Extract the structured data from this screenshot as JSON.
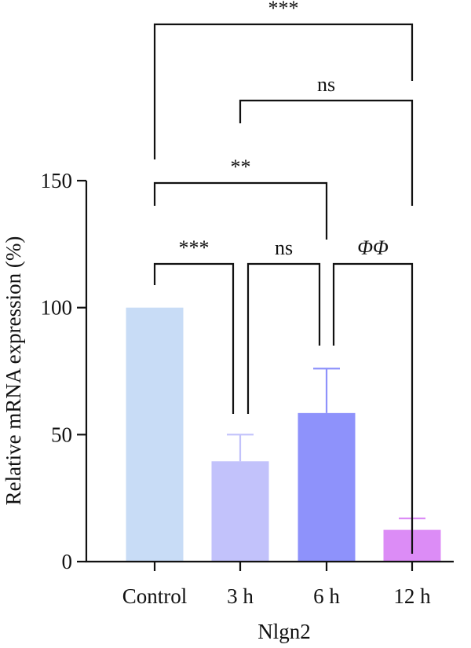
{
  "chart_data": {
    "type": "bar",
    "xlabel": "Nlgn2",
    "ylabel": "Relative mRNA expression (%)",
    "ylim": [
      0,
      150
    ],
    "yticks": [
      0,
      50,
      100,
      150
    ],
    "categories": [
      "Control",
      "3 h",
      "6 h",
      "12 h"
    ],
    "values": [
      100,
      39.5,
      58.5,
      12.5
    ],
    "errors": [
      0,
      10.5,
      17.5,
      4.5
    ],
    "colors": [
      "#c8dcf6",
      "#c2c2fb",
      "#8e92fb",
      "#dc8cf6"
    ],
    "comparisons": [
      {
        "from": 0,
        "to": 3,
        "label": "***",
        "tier": 4
      },
      {
        "from": 1,
        "to": 3,
        "label": "ns",
        "tier": 3
      },
      {
        "from": 0,
        "to": 2,
        "label": "**",
        "tier": 2
      },
      {
        "from": 0,
        "to": 1,
        "label": "***",
        "tier": 1
      },
      {
        "from": 1,
        "to": 2,
        "label": "ns",
        "tier": 1
      },
      {
        "from": 2,
        "to": 3,
        "label": "ΦΦ",
        "tier": 1,
        "italic": true
      }
    ]
  }
}
